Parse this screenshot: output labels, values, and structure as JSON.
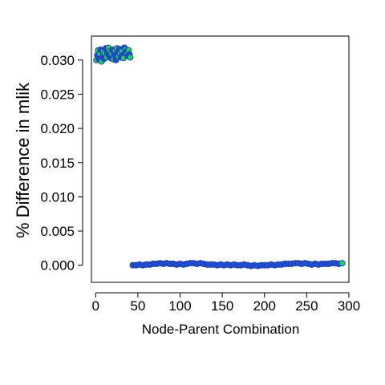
{
  "chart_data": {
    "type": "scatter",
    "title": "",
    "xlabel": "Node-Parent Combination",
    "ylabel": "% Difference in mlik",
    "xlim": [
      -5,
      300
    ],
    "ylim": [
      -0.0025,
      0.0335
    ],
    "x_ticks": [
      0,
      50,
      100,
      150,
      200,
      250,
      300
    ],
    "y_ticks": [
      0.0,
      0.005,
      0.01,
      0.015,
      0.02,
      0.025,
      0.03
    ],
    "x_tick_labels": [
      "0",
      "50",
      "100",
      "150",
      "200",
      "250",
      "300"
    ],
    "y_tick_labels": [
      "0.000",
      "0.005",
      "0.010",
      "0.015",
      "0.020",
      "0.025",
      "0.030"
    ],
    "grid": false,
    "colors": {
      "fill_high": "#22cc66",
      "fill_low": "#1f4fd8",
      "stroke": "#1a3fb0"
    },
    "series": [
      {
        "points": [
          [
            1,
            0.03
          ],
          [
            2,
            0.0307
          ],
          [
            3,
            0.0314
          ],
          [
            4,
            0.0301
          ],
          [
            5,
            0.0309
          ],
          [
            6,
            0.0315
          ],
          [
            7,
            0.0298
          ],
          [
            8,
            0.0305
          ],
          [
            9,
            0.0312
          ],
          [
            10,
            0.0302
          ],
          [
            11,
            0.031
          ],
          [
            12,
            0.0317
          ],
          [
            13,
            0.0304
          ],
          [
            14,
            0.0311
          ],
          [
            15,
            0.0318
          ],
          [
            16,
            0.0306
          ],
          [
            17,
            0.0313
          ],
          [
            18,
            0.0303
          ],
          [
            19,
            0.0309
          ],
          [
            20,
            0.0315
          ],
          [
            21,
            0.0301
          ],
          [
            22,
            0.0308
          ],
          [
            23,
            0.0314
          ],
          [
            24,
            0.03
          ],
          [
            25,
            0.0317
          ],
          [
            26,
            0.0311
          ],
          [
            27,
            0.0305
          ],
          [
            28,
            0.0316
          ],
          [
            29,
            0.031
          ],
          [
            30,
            0.0304
          ],
          [
            31,
            0.0313
          ],
          [
            32,
            0.0307
          ],
          [
            33,
            0.0303
          ],
          [
            34,
            0.0318
          ],
          [
            35,
            0.0315
          ],
          [
            36,
            0.0312
          ],
          [
            37,
            0.0309
          ],
          [
            38,
            0.0306
          ],
          [
            39,
            0.0314
          ],
          [
            40,
            0.0308
          ],
          [
            41,
            0.0304
          ]
        ]
      },
      {
        "points": [
          [
            44,
            0.0
          ],
          [
            48,
            0.0
          ],
          [
            52,
            0.0001
          ],
          [
            56,
            0.0
          ],
          [
            60,
            0.0001
          ],
          [
            64,
            0.0001
          ],
          [
            68,
            0.0002
          ],
          [
            72,
            0.0002
          ],
          [
            76,
            0.0003
          ],
          [
            80,
            0.0002
          ],
          [
            84,
            0.0003
          ],
          [
            88,
            0.0002
          ],
          [
            92,
            0.0002
          ],
          [
            96,
            0.0001
          ],
          [
            100,
            0.0002
          ],
          [
            104,
            0.0001
          ],
          [
            108,
            0.0002
          ],
          [
            112,
            0.0003
          ],
          [
            116,
            0.0003
          ],
          [
            120,
            0.0002
          ],
          [
            124,
            0.0003
          ],
          [
            128,
            0.0002
          ],
          [
            132,
            0.0001
          ],
          [
            136,
            0.0001
          ],
          [
            140,
            0.0001
          ],
          [
            144,
            0.0
          ],
          [
            148,
            0.0001
          ],
          [
            152,
            0.0
          ],
          [
            156,
            0.0001
          ],
          [
            160,
            0.0
          ],
          [
            164,
            0.0001
          ],
          [
            168,
            0.0
          ],
          [
            172,
            0.0
          ],
          [
            176,
            0.0001
          ],
          [
            180,
            0.0
          ],
          [
            184,
            -0.0001
          ],
          [
            188,
            0.0
          ],
          [
            192,
            -0.0001
          ],
          [
            196,
            0.0
          ],
          [
            200,
            0.0
          ],
          [
            204,
            0.0
          ],
          [
            208,
            0.0001
          ],
          [
            212,
            0.0
          ],
          [
            216,
            0.0001
          ],
          [
            220,
            0.0001
          ],
          [
            224,
            0.0002
          ],
          [
            228,
            0.0002
          ],
          [
            232,
            0.0002
          ],
          [
            236,
            0.0003
          ],
          [
            240,
            0.0003
          ],
          [
            244,
            0.0002
          ],
          [
            248,
            0.0003
          ],
          [
            252,
            0.0002
          ],
          [
            256,
            0.0001
          ],
          [
            260,
            0.0002
          ],
          [
            264,
            0.0001
          ],
          [
            268,
            0.0002
          ],
          [
            272,
            0.0002
          ],
          [
            276,
            0.0002
          ],
          [
            280,
            0.0003
          ],
          [
            284,
            0.0003
          ],
          [
            288,
            0.0002
          ],
          [
            292,
            0.0003
          ]
        ]
      }
    ]
  }
}
